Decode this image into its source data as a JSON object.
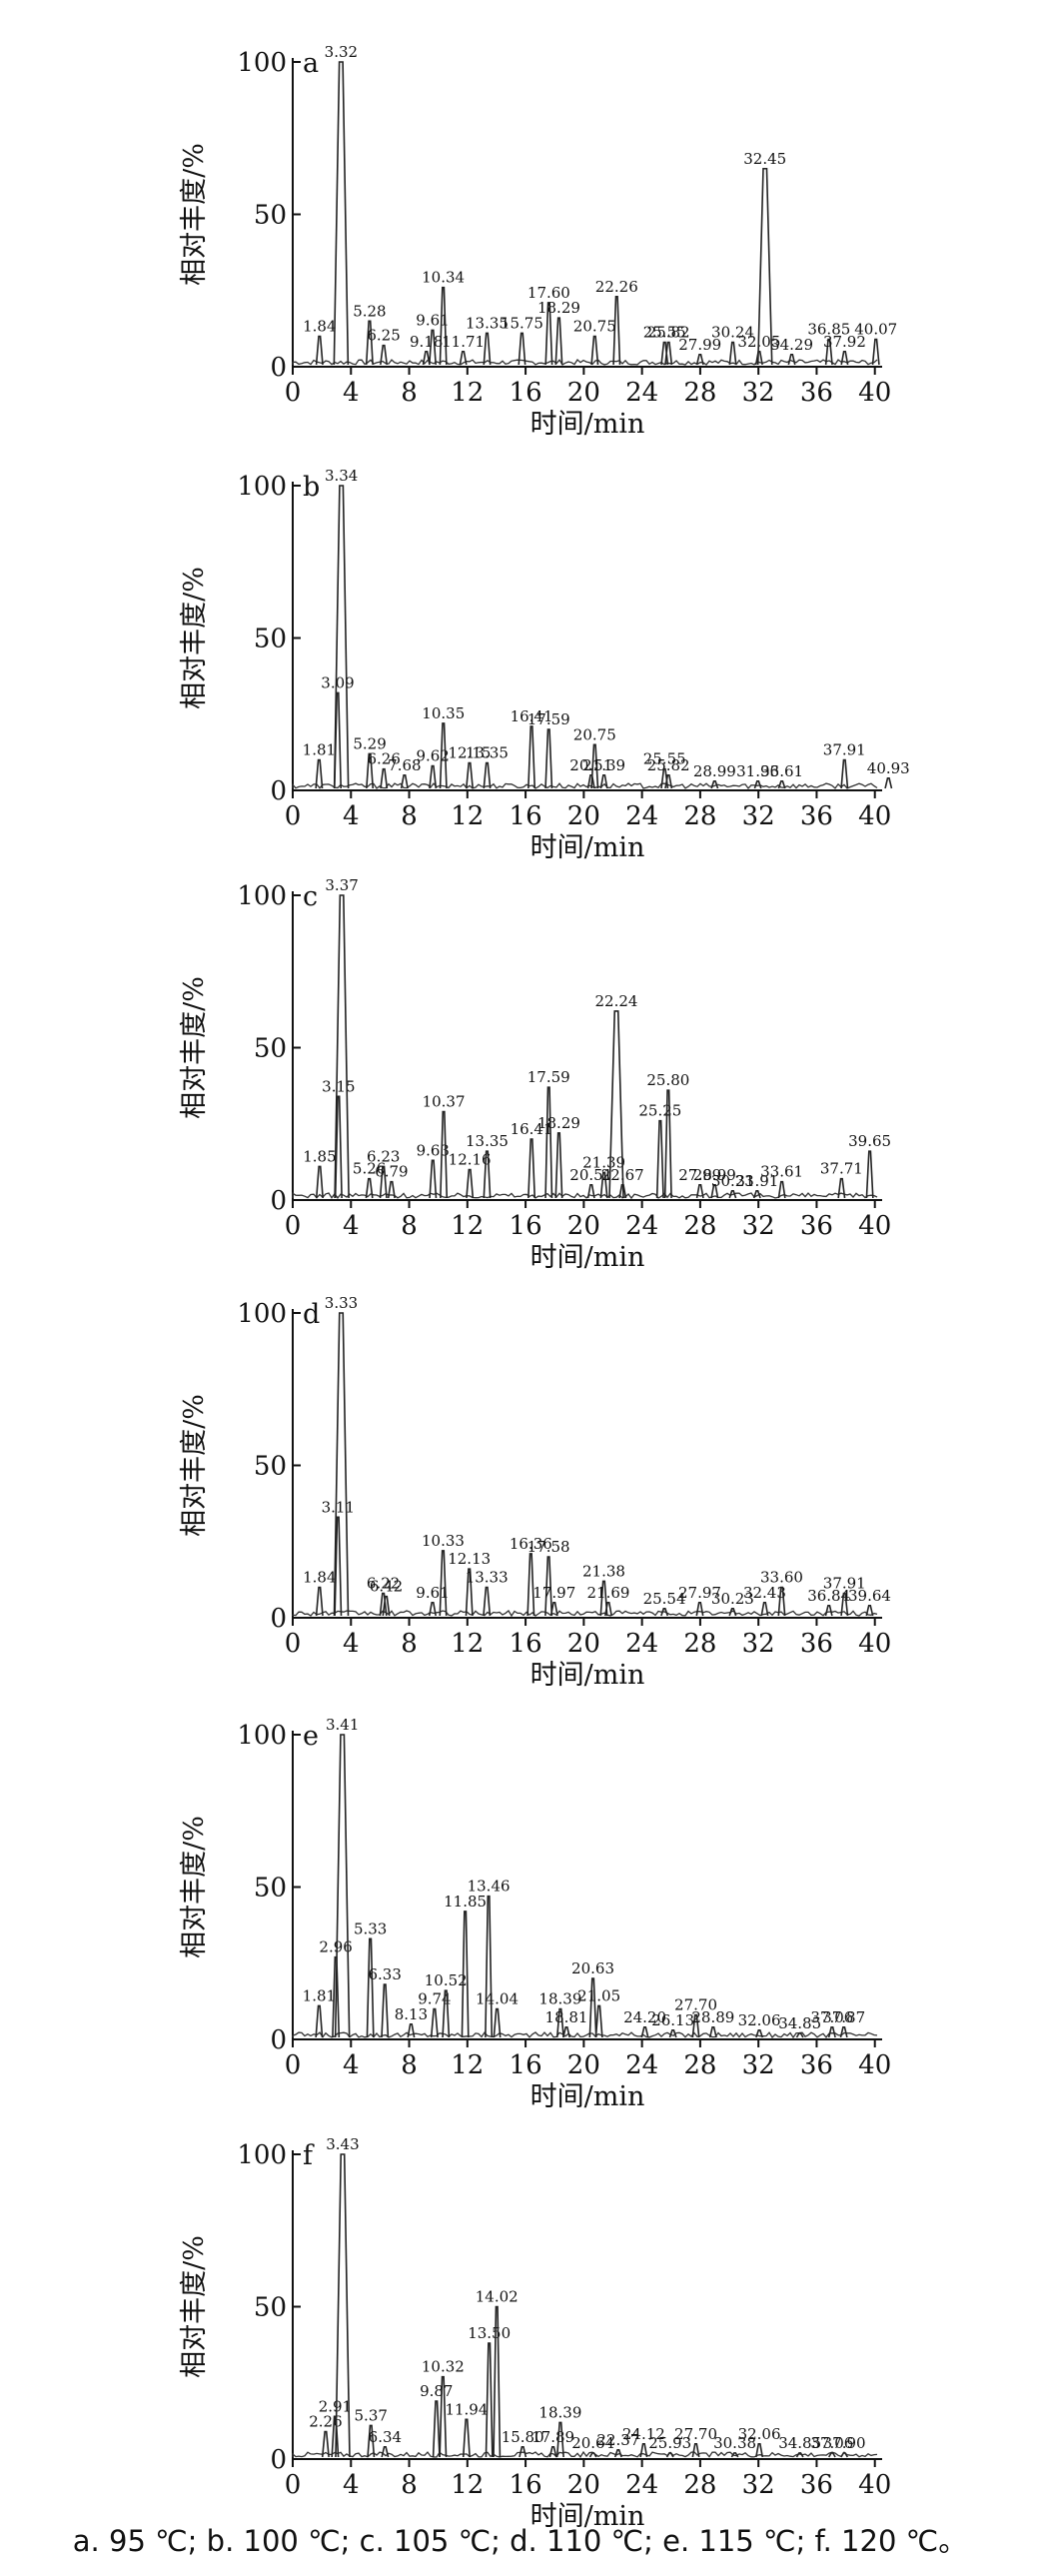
{
  "caption": "a. 95 ℃; b. 100 ℃; c. 105 ℃; d. 110 ℃; e. 115 ℃; f. 120 ℃。",
  "chart_data": [
    {
      "type": "line",
      "panel": "a",
      "xlabel": "时间/min",
      "ylabel": "相对丰度/%",
      "xlim": [
        0,
        40.5
      ],
      "ylim": [
        0,
        100
      ],
      "xticks": [
        0,
        4,
        8,
        12,
        16,
        20,
        24,
        28,
        32,
        36,
        40
      ],
      "yticks": [
        0,
        50,
        100
      ],
      "peaks": [
        {
          "x": 1.84,
          "y": 10
        },
        {
          "x": 3.32,
          "y": 100
        },
        {
          "x": 5.28,
          "y": 15
        },
        {
          "x": 6.25,
          "y": 7
        },
        {
          "x": 9.18,
          "y": 5
        },
        {
          "x": 9.61,
          "y": 12
        },
        {
          "x": 10.34,
          "y": 26
        },
        {
          "x": 11.71,
          "y": 5
        },
        {
          "x": 13.35,
          "y": 11
        },
        {
          "x": 15.75,
          "y": 11
        },
        {
          "x": 17.6,
          "y": 21
        },
        {
          "x": 18.29,
          "y": 16
        },
        {
          "x": 20.75,
          "y": 10
        },
        {
          "x": 22.26,
          "y": 23
        },
        {
          "x": 25.55,
          "y": 8
        },
        {
          "x": 25.82,
          "y": 8
        },
        {
          "x": 27.99,
          "y": 4
        },
        {
          "x": 30.24,
          "y": 8
        },
        {
          "x": 32.05,
          "y": 5
        },
        {
          "x": 32.45,
          "y": 65
        },
        {
          "x": 34.29,
          "y": 4
        },
        {
          "x": 36.85,
          "y": 9
        },
        {
          "x": 37.92,
          "y": 5
        },
        {
          "x": 40.07,
          "y": 9
        }
      ]
    },
    {
      "type": "line",
      "panel": "b",
      "xlabel": "时间/min",
      "ylabel": "相对丰度/%",
      "xlim": [
        0,
        40.5
      ],
      "ylim": [
        0,
        100
      ],
      "xticks": [
        0,
        4,
        8,
        12,
        16,
        20,
        24,
        28,
        32,
        36,
        40
      ],
      "yticks": [
        0,
        50,
        100
      ],
      "peaks": [
        {
          "x": 1.81,
          "y": 10
        },
        {
          "x": 3.09,
          "y": 32
        },
        {
          "x": 3.34,
          "y": 100
        },
        {
          "x": 5.29,
          "y": 12
        },
        {
          "x": 6.26,
          "y": 7
        },
        {
          "x": 7.68,
          "y": 5
        },
        {
          "x": 9.62,
          "y": 8
        },
        {
          "x": 10.35,
          "y": 22
        },
        {
          "x": 12.15,
          "y": 9
        },
        {
          "x": 13.35,
          "y": 9
        },
        {
          "x": 16.41,
          "y": 21
        },
        {
          "x": 17.59,
          "y": 20
        },
        {
          "x": 20.51,
          "y": 5
        },
        {
          "x": 20.75,
          "y": 15
        },
        {
          "x": 21.39,
          "y": 5
        },
        {
          "x": 25.55,
          "y": 7
        },
        {
          "x": 25.82,
          "y": 5
        },
        {
          "x": 28.99,
          "y": 3
        },
        {
          "x": 31.96,
          "y": 3
        },
        {
          "x": 33.61,
          "y": 3
        },
        {
          "x": 37.91,
          "y": 10
        },
        {
          "x": 40.93,
          "y": 4
        }
      ]
    },
    {
      "type": "line",
      "panel": "c",
      "xlabel": "时间/min",
      "ylabel": "相对丰度/%",
      "xlim": [
        0,
        40.5
      ],
      "ylim": [
        0,
        100
      ],
      "xticks": [
        0,
        4,
        8,
        12,
        16,
        20,
        24,
        28,
        32,
        36,
        40
      ],
      "yticks": [
        0,
        50,
        100
      ],
      "peaks": [
        {
          "x": 1.85,
          "y": 11
        },
        {
          "x": 3.15,
          "y": 34
        },
        {
          "x": 3.37,
          "y": 100
        },
        {
          "x": 5.26,
          "y": 7
        },
        {
          "x": 6.23,
          "y": 11
        },
        {
          "x": 6.79,
          "y": 6
        },
        {
          "x": 9.63,
          "y": 13
        },
        {
          "x": 10.37,
          "y": 29
        },
        {
          "x": 12.16,
          "y": 10
        },
        {
          "x": 13.35,
          "y": 16
        },
        {
          "x": 16.41,
          "y": 20
        },
        {
          "x": 17.59,
          "y": 37
        },
        {
          "x": 18.29,
          "y": 22
        },
        {
          "x": 20.51,
          "y": 5
        },
        {
          "x": 21.39,
          "y": 9
        },
        {
          "x": 22.24,
          "y": 62
        },
        {
          "x": 22.67,
          "y": 5
        },
        {
          "x": 25.25,
          "y": 26
        },
        {
          "x": 25.8,
          "y": 36
        },
        {
          "x": 27.99,
          "y": 5
        },
        {
          "x": 28.99,
          "y": 5
        },
        {
          "x": 30.23,
          "y": 3
        },
        {
          "x": 31.91,
          "y": 3
        },
        {
          "x": 33.61,
          "y": 6
        },
        {
          "x": 37.71,
          "y": 7
        },
        {
          "x": 39.65,
          "y": 16
        }
      ]
    },
    {
      "type": "line",
      "panel": "d",
      "xlabel": "时间/min",
      "ylabel": "相对丰度/%",
      "xlim": [
        0,
        40.5
      ],
      "ylim": [
        0,
        100
      ],
      "xticks": [
        0,
        4,
        8,
        12,
        16,
        20,
        24,
        28,
        32,
        36,
        40
      ],
      "yticks": [
        0,
        50,
        100
      ],
      "peaks": [
        {
          "x": 1.84,
          "y": 10
        },
        {
          "x": 3.11,
          "y": 33
        },
        {
          "x": 3.33,
          "y": 100
        },
        {
          "x": 6.22,
          "y": 8
        },
        {
          "x": 6.42,
          "y": 7
        },
        {
          "x": 9.61,
          "y": 5
        },
        {
          "x": 10.33,
          "y": 22
        },
        {
          "x": 12.13,
          "y": 16
        },
        {
          "x": 13.33,
          "y": 10
        },
        {
          "x": 16.36,
          "y": 21
        },
        {
          "x": 17.58,
          "y": 20
        },
        {
          "x": 17.97,
          "y": 5
        },
        {
          "x": 21.38,
          "y": 12
        },
        {
          "x": 21.69,
          "y": 5
        },
        {
          "x": 25.54,
          "y": 3
        },
        {
          "x": 27.97,
          "y": 5
        },
        {
          "x": 30.23,
          "y": 3
        },
        {
          "x": 32.43,
          "y": 5
        },
        {
          "x": 33.6,
          "y": 10
        },
        {
          "x": 36.84,
          "y": 4
        },
        {
          "x": 37.91,
          "y": 8
        },
        {
          "x": 39.64,
          "y": 4
        }
      ]
    },
    {
      "type": "line",
      "panel": "e",
      "xlabel": "时间/min",
      "ylabel": "相对丰度/%",
      "xlim": [
        0,
        40.5
      ],
      "ylim": [
        0,
        100
      ],
      "xticks": [
        0,
        4,
        8,
        12,
        16,
        20,
        24,
        28,
        32,
        36,
        40
      ],
      "yticks": [
        0,
        50,
        100
      ],
      "peaks": [
        {
          "x": 1.81,
          "y": 11
        },
        {
          "x": 2.96,
          "y": 27
        },
        {
          "x": 3.41,
          "y": 100
        },
        {
          "x": 5.33,
          "y": 33
        },
        {
          "x": 6.33,
          "y": 18
        },
        {
          "x": 8.13,
          "y": 5
        },
        {
          "x": 9.74,
          "y": 10
        },
        {
          "x": 10.52,
          "y": 16
        },
        {
          "x": 11.85,
          "y": 42
        },
        {
          "x": 13.46,
          "y": 47
        },
        {
          "x": 14.04,
          "y": 10
        },
        {
          "x": 18.39,
          "y": 10
        },
        {
          "x": 18.81,
          "y": 4
        },
        {
          "x": 20.63,
          "y": 20
        },
        {
          "x": 21.05,
          "y": 11
        },
        {
          "x": 24.2,
          "y": 4
        },
        {
          "x": 26.13,
          "y": 3
        },
        {
          "x": 27.7,
          "y": 8
        },
        {
          "x": 28.89,
          "y": 4
        },
        {
          "x": 32.06,
          "y": 3
        },
        {
          "x": 34.85,
          "y": 2
        },
        {
          "x": 37.06,
          "y": 4
        },
        {
          "x": 37.87,
          "y": 4
        }
      ]
    },
    {
      "type": "line",
      "panel": "f",
      "xlabel": "时间/min",
      "ylabel": "相对丰度/%",
      "xlim": [
        0,
        40.5
      ],
      "ylim": [
        0,
        100
      ],
      "xticks": [
        0,
        4,
        8,
        12,
        16,
        20,
        24,
        28,
        32,
        36,
        40
      ],
      "yticks": [
        0,
        50,
        100
      ],
      "peaks": [
        {
          "x": 2.26,
          "y": 9
        },
        {
          "x": 2.91,
          "y": 14
        },
        {
          "x": 3.43,
          "y": 100
        },
        {
          "x": 5.37,
          "y": 11
        },
        {
          "x": 6.34,
          "y": 4
        },
        {
          "x": 9.87,
          "y": 19
        },
        {
          "x": 10.32,
          "y": 27
        },
        {
          "x": 11.94,
          "y": 13
        },
        {
          "x": 13.5,
          "y": 38
        },
        {
          "x": 14.02,
          "y": 50
        },
        {
          "x": 15.8,
          "y": 4
        },
        {
          "x": 17.89,
          "y": 4
        },
        {
          "x": 18.39,
          "y": 12
        },
        {
          "x": 20.64,
          "y": 2
        },
        {
          "x": 22.37,
          "y": 3
        },
        {
          "x": 24.12,
          "y": 5
        },
        {
          "x": 25.93,
          "y": 2
        },
        {
          "x": 27.7,
          "y": 5
        },
        {
          "x": 30.38,
          "y": 2
        },
        {
          "x": 32.06,
          "y": 5
        },
        {
          "x": 34.85,
          "y": 2
        },
        {
          "x": 37.06,
          "y": 2
        },
        {
          "x": 37.9,
          "y": 2
        }
      ]
    }
  ]
}
